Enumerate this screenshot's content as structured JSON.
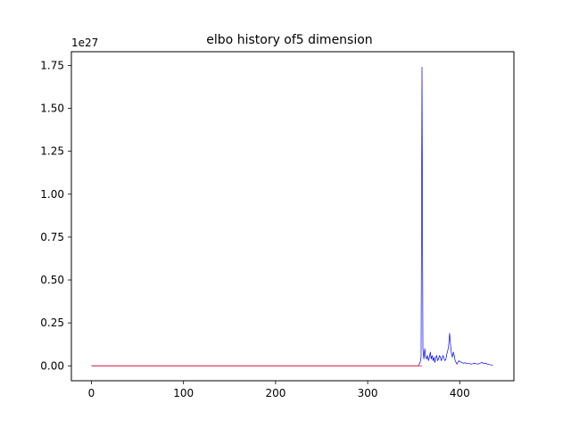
{
  "chart_data": {
    "type": "line",
    "title": "elbo history of5 dimension",
    "xlabel": "",
    "ylabel": "",
    "y_offset_label": "1e27",
    "y_scale_exponent": 27,
    "xlim": [
      -21.8,
      458.8
    ],
    "ylim": [
      -0.087,
      1.83
    ],
    "x_ticks": [
      0,
      100,
      200,
      300,
      400
    ],
    "x_tick_labels": [
      "0",
      "100",
      "200",
      "300",
      "400"
    ],
    "y_ticks": [
      0.0,
      0.25,
      0.5,
      0.75,
      1.0,
      1.25,
      1.5,
      1.75
    ],
    "y_tick_labels": [
      "0.00",
      "0.25",
      "0.50",
      "0.75",
      "1.00",
      "1.25",
      "1.50",
      "1.75"
    ],
    "grid": false,
    "legend": "none",
    "series": [
      {
        "color": "#0000ff",
        "points": [
          [
            0,
            0
          ],
          [
            100,
            0
          ],
          [
            200,
            0
          ],
          [
            300,
            0
          ],
          [
            355,
            0
          ],
          [
            356,
            0.01
          ],
          [
            357,
            0.02
          ],
          [
            358,
            0.05
          ],
          [
            359,
            1.74
          ],
          [
            360,
            0.1
          ],
          [
            361,
            0.04
          ],
          [
            362,
            0.1
          ],
          [
            363,
            0.05
          ],
          [
            364,
            0.04
          ],
          [
            365,
            0.06
          ],
          [
            366,
            0.03
          ],
          [
            367,
            0.05
          ],
          [
            368,
            0.08
          ],
          [
            369,
            0.04
          ],
          [
            370,
            0.06
          ],
          [
            371,
            0.03
          ],
          [
            372,
            0.05
          ],
          [
            373,
            0.02
          ],
          [
            374,
            0.05
          ],
          [
            375,
            0.06
          ],
          [
            376,
            0.03
          ],
          [
            377,
            0.04
          ],
          [
            378,
            0.06
          ],
          [
            379,
            0.05
          ],
          [
            380,
            0.03
          ],
          [
            381,
            0.05
          ],
          [
            382,
            0.06
          ],
          [
            383,
            0.04
          ],
          [
            384,
            0.03
          ],
          [
            385,
            0.04
          ],
          [
            386,
            0.07
          ],
          [
            387,
            0.09
          ],
          [
            388,
            0.12
          ],
          [
            389,
            0.19
          ],
          [
            390,
            0.12
          ],
          [
            391,
            0.07
          ],
          [
            392,
            0.05
          ],
          [
            393,
            0.08
          ],
          [
            394,
            0.06
          ],
          [
            395,
            0.03
          ],
          [
            396,
            0.02
          ],
          [
            397,
            0.01
          ],
          [
            398,
            0.02
          ],
          [
            399,
            0.03
          ],
          [
            400,
            0.025
          ],
          [
            402,
            0.02
          ],
          [
            404,
            0.015
          ],
          [
            406,
            0.018
          ],
          [
            408,
            0.012
          ],
          [
            410,
            0.014
          ],
          [
            412,
            0.01
          ],
          [
            414,
            0.012
          ],
          [
            416,
            0.015
          ],
          [
            418,
            0.012
          ],
          [
            420,
            0.01
          ],
          [
            422,
            0.015
          ],
          [
            424,
            0.02
          ],
          [
            426,
            0.012
          ],
          [
            428,
            0.015
          ],
          [
            430,
            0.01
          ],
          [
            432,
            0.008
          ],
          [
            434,
            0.005
          ],
          [
            436,
            0.005
          ]
        ]
      },
      {
        "color": "#ff0000",
        "points": [
          [
            0,
            0
          ],
          [
            100,
            0
          ],
          [
            200,
            0
          ],
          [
            300,
            0
          ],
          [
            359,
            0
          ]
        ]
      }
    ]
  }
}
